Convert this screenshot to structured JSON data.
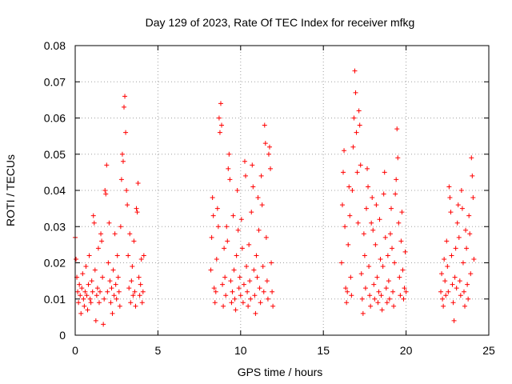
{
  "chart_data": {
    "type": "scatter",
    "title": "Day 129 of 2023, Rate Of TEC Index for receiver mfkg",
    "xlabel": "GPS time / hours",
    "ylabel": "ROTI / TECUs",
    "xlim": [
      0,
      25
    ],
    "ylim": [
      0,
      0.08
    ],
    "x_ticks": [
      0,
      5,
      10,
      15,
      20,
      25
    ],
    "x_tick_labels": [
      "0",
      "5",
      "10",
      "15",
      "20",
      "25"
    ],
    "y_ticks": [
      0,
      0.01,
      0.02,
      0.03,
      0.04,
      0.05,
      0.06,
      0.07,
      0.08
    ],
    "y_tick_labels": [
      "0",
      "0.01",
      "0.02",
      "0.03",
      "0.04",
      "0.05",
      "0.06",
      "0.07",
      "0.08"
    ],
    "grid": true,
    "marker": "plus",
    "color": "#ff0000",
    "series": [
      {
        "name": "ROTI",
        "points": [
          [
            0.0,
            0.027
          ],
          [
            0.05,
            0.021
          ],
          [
            0.1,
            0.016
          ],
          [
            0.15,
            0.012
          ],
          [
            0.2,
            0.009
          ],
          [
            0.25,
            0.014
          ],
          [
            0.3,
            0.011
          ],
          [
            0.35,
            0.006
          ],
          [
            0.4,
            0.013
          ],
          [
            0.45,
            0.017
          ],
          [
            0.5,
            0.01
          ],
          [
            0.55,
            0.008
          ],
          [
            0.6,
            0.012
          ],
          [
            0.65,
            0.019
          ],
          [
            0.7,
            0.011
          ],
          [
            0.75,
            0.007
          ],
          [
            0.8,
            0.014
          ],
          [
            0.85,
            0.022
          ],
          [
            0.9,
            0.01
          ],
          [
            0.95,
            0.009
          ],
          [
            1.0,
            0.015
          ],
          [
            1.05,
            0.012
          ],
          [
            1.1,
            0.033
          ],
          [
            1.15,
            0.031
          ],
          [
            1.2,
            0.018
          ],
          [
            1.25,
            0.004
          ],
          [
            1.3,
            0.011
          ],
          [
            1.35,
            0.013
          ],
          [
            1.4,
            0.024
          ],
          [
            1.45,
            0.009
          ],
          [
            1.5,
            0.012
          ],
          [
            1.55,
            0.028
          ],
          [
            1.6,
            0.026
          ],
          [
            1.65,
            0.016
          ],
          [
            1.7,
            0.003
          ],
          [
            1.75,
            0.01
          ],
          [
            1.8,
            0.04
          ],
          [
            1.85,
            0.039
          ],
          [
            1.9,
            0.047
          ],
          [
            1.95,
            0.012
          ],
          [
            2.0,
            0.02
          ],
          [
            2.05,
            0.031
          ],
          [
            2.1,
            0.015
          ],
          [
            2.15,
            0.009
          ],
          [
            2.2,
            0.013
          ],
          [
            2.25,
            0.006
          ],
          [
            2.3,
            0.018
          ],
          [
            2.35,
            0.011
          ],
          [
            2.4,
            0.028
          ],
          [
            2.45,
            0.014
          ],
          [
            2.5,
            0.01
          ],
          [
            2.55,
            0.022
          ],
          [
            2.6,
            0.016
          ],
          [
            2.65,
            0.012
          ],
          [
            2.7,
            0.008
          ],
          [
            2.75,
            0.03
          ],
          [
            2.8,
            0.043
          ],
          [
            2.85,
            0.05
          ],
          [
            2.9,
            0.048
          ],
          [
            2.95,
            0.063
          ],
          [
            3.0,
            0.066
          ],
          [
            3.05,
            0.056
          ],
          [
            3.1,
            0.04
          ],
          [
            3.15,
            0.036
          ],
          [
            3.2,
            0.022
          ],
          [
            3.25,
            0.013
          ],
          [
            3.3,
            0.028
          ],
          [
            3.35,
            0.009
          ],
          [
            3.4,
            0.015
          ],
          [
            3.45,
            0.019
          ],
          [
            3.5,
            0.011
          ],
          [
            3.55,
            0.026
          ],
          [
            3.6,
            0.012
          ],
          [
            3.65,
            0.008
          ],
          [
            3.7,
            0.035
          ],
          [
            3.75,
            0.034
          ],
          [
            3.8,
            0.042
          ],
          [
            3.85,
            0.016
          ],
          [
            3.9,
            0.011
          ],
          [
            3.95,
            0.014
          ],
          [
            4.0,
            0.021
          ],
          [
            4.05,
            0.009
          ],
          [
            4.1,
            0.012
          ],
          [
            4.15,
            0.022
          ],
          [
            8.2,
            0.018
          ],
          [
            8.25,
            0.027
          ],
          [
            8.3,
            0.038
          ],
          [
            8.35,
            0.033
          ],
          [
            8.4,
            0.013
          ],
          [
            8.45,
            0.009
          ],
          [
            8.5,
            0.012
          ],
          [
            8.55,
            0.021
          ],
          [
            8.6,
            0.035
          ],
          [
            8.65,
            0.03
          ],
          [
            8.7,
            0.06
          ],
          [
            8.75,
            0.056
          ],
          [
            8.8,
            0.064
          ],
          [
            8.85,
            0.058
          ],
          [
            8.9,
            0.014
          ],
          [
            8.95,
            0.008
          ],
          [
            9.0,
            0.024
          ],
          [
            9.05,
            0.016
          ],
          [
            9.1,
            0.011
          ],
          [
            9.15,
            0.03
          ],
          [
            9.2,
            0.026
          ],
          [
            9.25,
            0.046
          ],
          [
            9.3,
            0.05
          ],
          [
            9.35,
            0.043
          ],
          [
            9.4,
            0.015
          ],
          [
            9.45,
            0.009
          ],
          [
            9.5,
            0.012
          ],
          [
            9.55,
            0.033
          ],
          [
            9.6,
            0.018
          ],
          [
            9.65,
            0.01
          ],
          [
            9.7,
            0.007
          ],
          [
            9.75,
            0.022
          ],
          [
            9.8,
            0.04
          ],
          [
            9.85,
            0.029
          ],
          [
            9.9,
            0.013
          ],
          [
            9.95,
            0.016
          ],
          [
            10.0,
            0.011
          ],
          [
            10.05,
            0.032
          ],
          [
            10.1,
            0.024
          ],
          [
            10.15,
            0.009
          ],
          [
            10.2,
            0.014
          ],
          [
            10.25,
            0.048
          ],
          [
            10.3,
            0.044
          ],
          [
            10.35,
            0.019
          ],
          [
            10.4,
            0.012
          ],
          [
            10.45,
            0.008
          ],
          [
            10.5,
            0.025
          ],
          [
            10.55,
            0.015
          ],
          [
            10.6,
            0.01
          ],
          [
            10.65,
            0.034
          ],
          [
            10.7,
            0.047
          ],
          [
            10.75,
            0.041
          ],
          [
            10.8,
            0.018
          ],
          [
            10.85,
            0.011
          ],
          [
            10.9,
            0.006
          ],
          [
            10.95,
            0.022
          ],
          [
            11.0,
            0.016
          ],
          [
            11.05,
            0.038
          ],
          [
            11.1,
            0.029
          ],
          [
            11.15,
            0.013
          ],
          [
            11.2,
            0.009
          ],
          [
            11.25,
            0.044
          ],
          [
            11.3,
            0.036
          ],
          [
            11.35,
            0.019
          ],
          [
            11.4,
            0.012
          ],
          [
            11.45,
            0.058
          ],
          [
            11.5,
            0.053
          ],
          [
            11.55,
            0.027
          ],
          [
            11.6,
            0.015
          ],
          [
            11.65,
            0.01
          ],
          [
            11.7,
            0.05
          ],
          [
            11.75,
            0.052
          ],
          [
            11.8,
            0.046
          ],
          [
            11.85,
            0.02
          ],
          [
            11.9,
            0.012
          ],
          [
            11.95,
            0.008
          ],
          [
            16.1,
            0.02
          ],
          [
            16.15,
            0.036
          ],
          [
            16.2,
            0.045
          ],
          [
            16.25,
            0.051
          ],
          [
            16.3,
            0.03
          ],
          [
            16.35,
            0.013
          ],
          [
            16.4,
            0.009
          ],
          [
            16.45,
            0.012
          ],
          [
            16.5,
            0.025
          ],
          [
            16.55,
            0.041
          ],
          [
            16.6,
            0.033
          ],
          [
            16.65,
            0.016
          ],
          [
            16.7,
            0.011
          ],
          [
            16.75,
            0.04
          ],
          [
            16.8,
            0.052
          ],
          [
            16.85,
            0.06
          ],
          [
            16.9,
            0.073
          ],
          [
            16.95,
            0.067
          ],
          [
            17.0,
            0.056
          ],
          [
            17.05,
            0.045
          ],
          [
            17.1,
            0.031
          ],
          [
            17.15,
            0.062
          ],
          [
            17.2,
            0.058
          ],
          [
            17.25,
            0.047
          ],
          [
            17.3,
            0.017
          ],
          [
            17.35,
            0.01
          ],
          [
            17.4,
            0.006
          ],
          [
            17.45,
            0.028
          ],
          [
            17.5,
            0.022
          ],
          [
            17.55,
            0.013
          ],
          [
            17.6,
            0.035
          ],
          [
            17.65,
            0.046
          ],
          [
            17.7,
            0.041
          ],
          [
            17.75,
            0.019
          ],
          [
            17.8,
            0.011
          ],
          [
            17.85,
            0.008
          ],
          [
            17.9,
            0.031
          ],
          [
            17.95,
            0.038
          ],
          [
            18.0,
            0.029
          ],
          [
            18.05,
            0.014
          ],
          [
            18.1,
            0.01
          ],
          [
            18.15,
            0.025
          ],
          [
            18.2,
            0.036
          ],
          [
            18.25,
            0.016
          ],
          [
            18.3,
            0.009
          ],
          [
            18.35,
            0.012
          ],
          [
            18.4,
            0.032
          ],
          [
            18.45,
            0.021
          ],
          [
            18.5,
            0.011
          ],
          [
            18.55,
            0.007
          ],
          [
            18.6,
            0.019
          ],
          [
            18.65,
            0.039
          ],
          [
            18.7,
            0.045
          ],
          [
            18.75,
            0.027
          ],
          [
            18.8,
            0.013
          ],
          [
            18.85,
            0.009
          ],
          [
            18.9,
            0.022
          ],
          [
            18.95,
            0.015
          ],
          [
            19.0,
            0.01
          ],
          [
            19.05,
            0.028
          ],
          [
            19.1,
            0.035
          ],
          [
            19.15,
            0.024
          ],
          [
            19.2,
            0.012
          ],
          [
            19.25,
            0.008
          ],
          [
            19.3,
            0.02
          ],
          [
            19.35,
            0.039
          ],
          [
            19.4,
            0.043
          ],
          [
            19.45,
            0.057
          ],
          [
            19.5,
            0.049
          ],
          [
            19.55,
            0.031
          ],
          [
            19.6,
            0.016
          ],
          [
            19.65,
            0.011
          ],
          [
            19.7,
            0.026
          ],
          [
            19.75,
            0.034
          ],
          [
            19.8,
            0.018
          ],
          [
            19.85,
            0.01
          ],
          [
            19.9,
            0.013
          ],
          [
            19.95,
            0.023
          ],
          [
            20.0,
            0.012
          ],
          [
            22.1,
            0.012
          ],
          [
            22.15,
            0.017
          ],
          [
            22.2,
            0.01
          ],
          [
            22.25,
            0.008
          ],
          [
            22.3,
            0.021
          ],
          [
            22.35,
            0.015
          ],
          [
            22.4,
            0.011
          ],
          [
            22.45,
            0.026
          ],
          [
            22.5,
            0.019
          ],
          [
            22.55,
            0.012
          ],
          [
            22.6,
            0.041
          ],
          [
            22.65,
            0.038
          ],
          [
            22.7,
            0.034
          ],
          [
            22.75,
            0.022
          ],
          [
            22.8,
            0.014
          ],
          [
            22.85,
            0.009
          ],
          [
            22.9,
            0.004
          ],
          [
            22.95,
            0.016
          ],
          [
            23.0,
            0.024
          ],
          [
            23.05,
            0.013
          ],
          [
            23.1,
            0.031
          ],
          [
            23.15,
            0.036
          ],
          [
            23.2,
            0.027
          ],
          [
            23.25,
            0.015
          ],
          [
            23.3,
            0.011
          ],
          [
            23.35,
            0.04
          ],
          [
            23.4,
            0.035
          ],
          [
            23.45,
            0.02
          ],
          [
            23.5,
            0.012
          ],
          [
            23.55,
            0.008
          ],
          [
            23.6,
            0.029
          ],
          [
            23.65,
            0.024
          ],
          [
            23.7,
            0.014
          ],
          [
            23.75,
            0.01
          ],
          [
            23.8,
            0.033
          ],
          [
            23.85,
            0.028
          ],
          [
            23.9,
            0.017
          ],
          [
            23.95,
            0.049
          ],
          [
            24.0,
            0.044
          ],
          [
            24.05,
            0.038
          ],
          [
            24.1,
            0.021
          ]
        ]
      }
    ]
  }
}
